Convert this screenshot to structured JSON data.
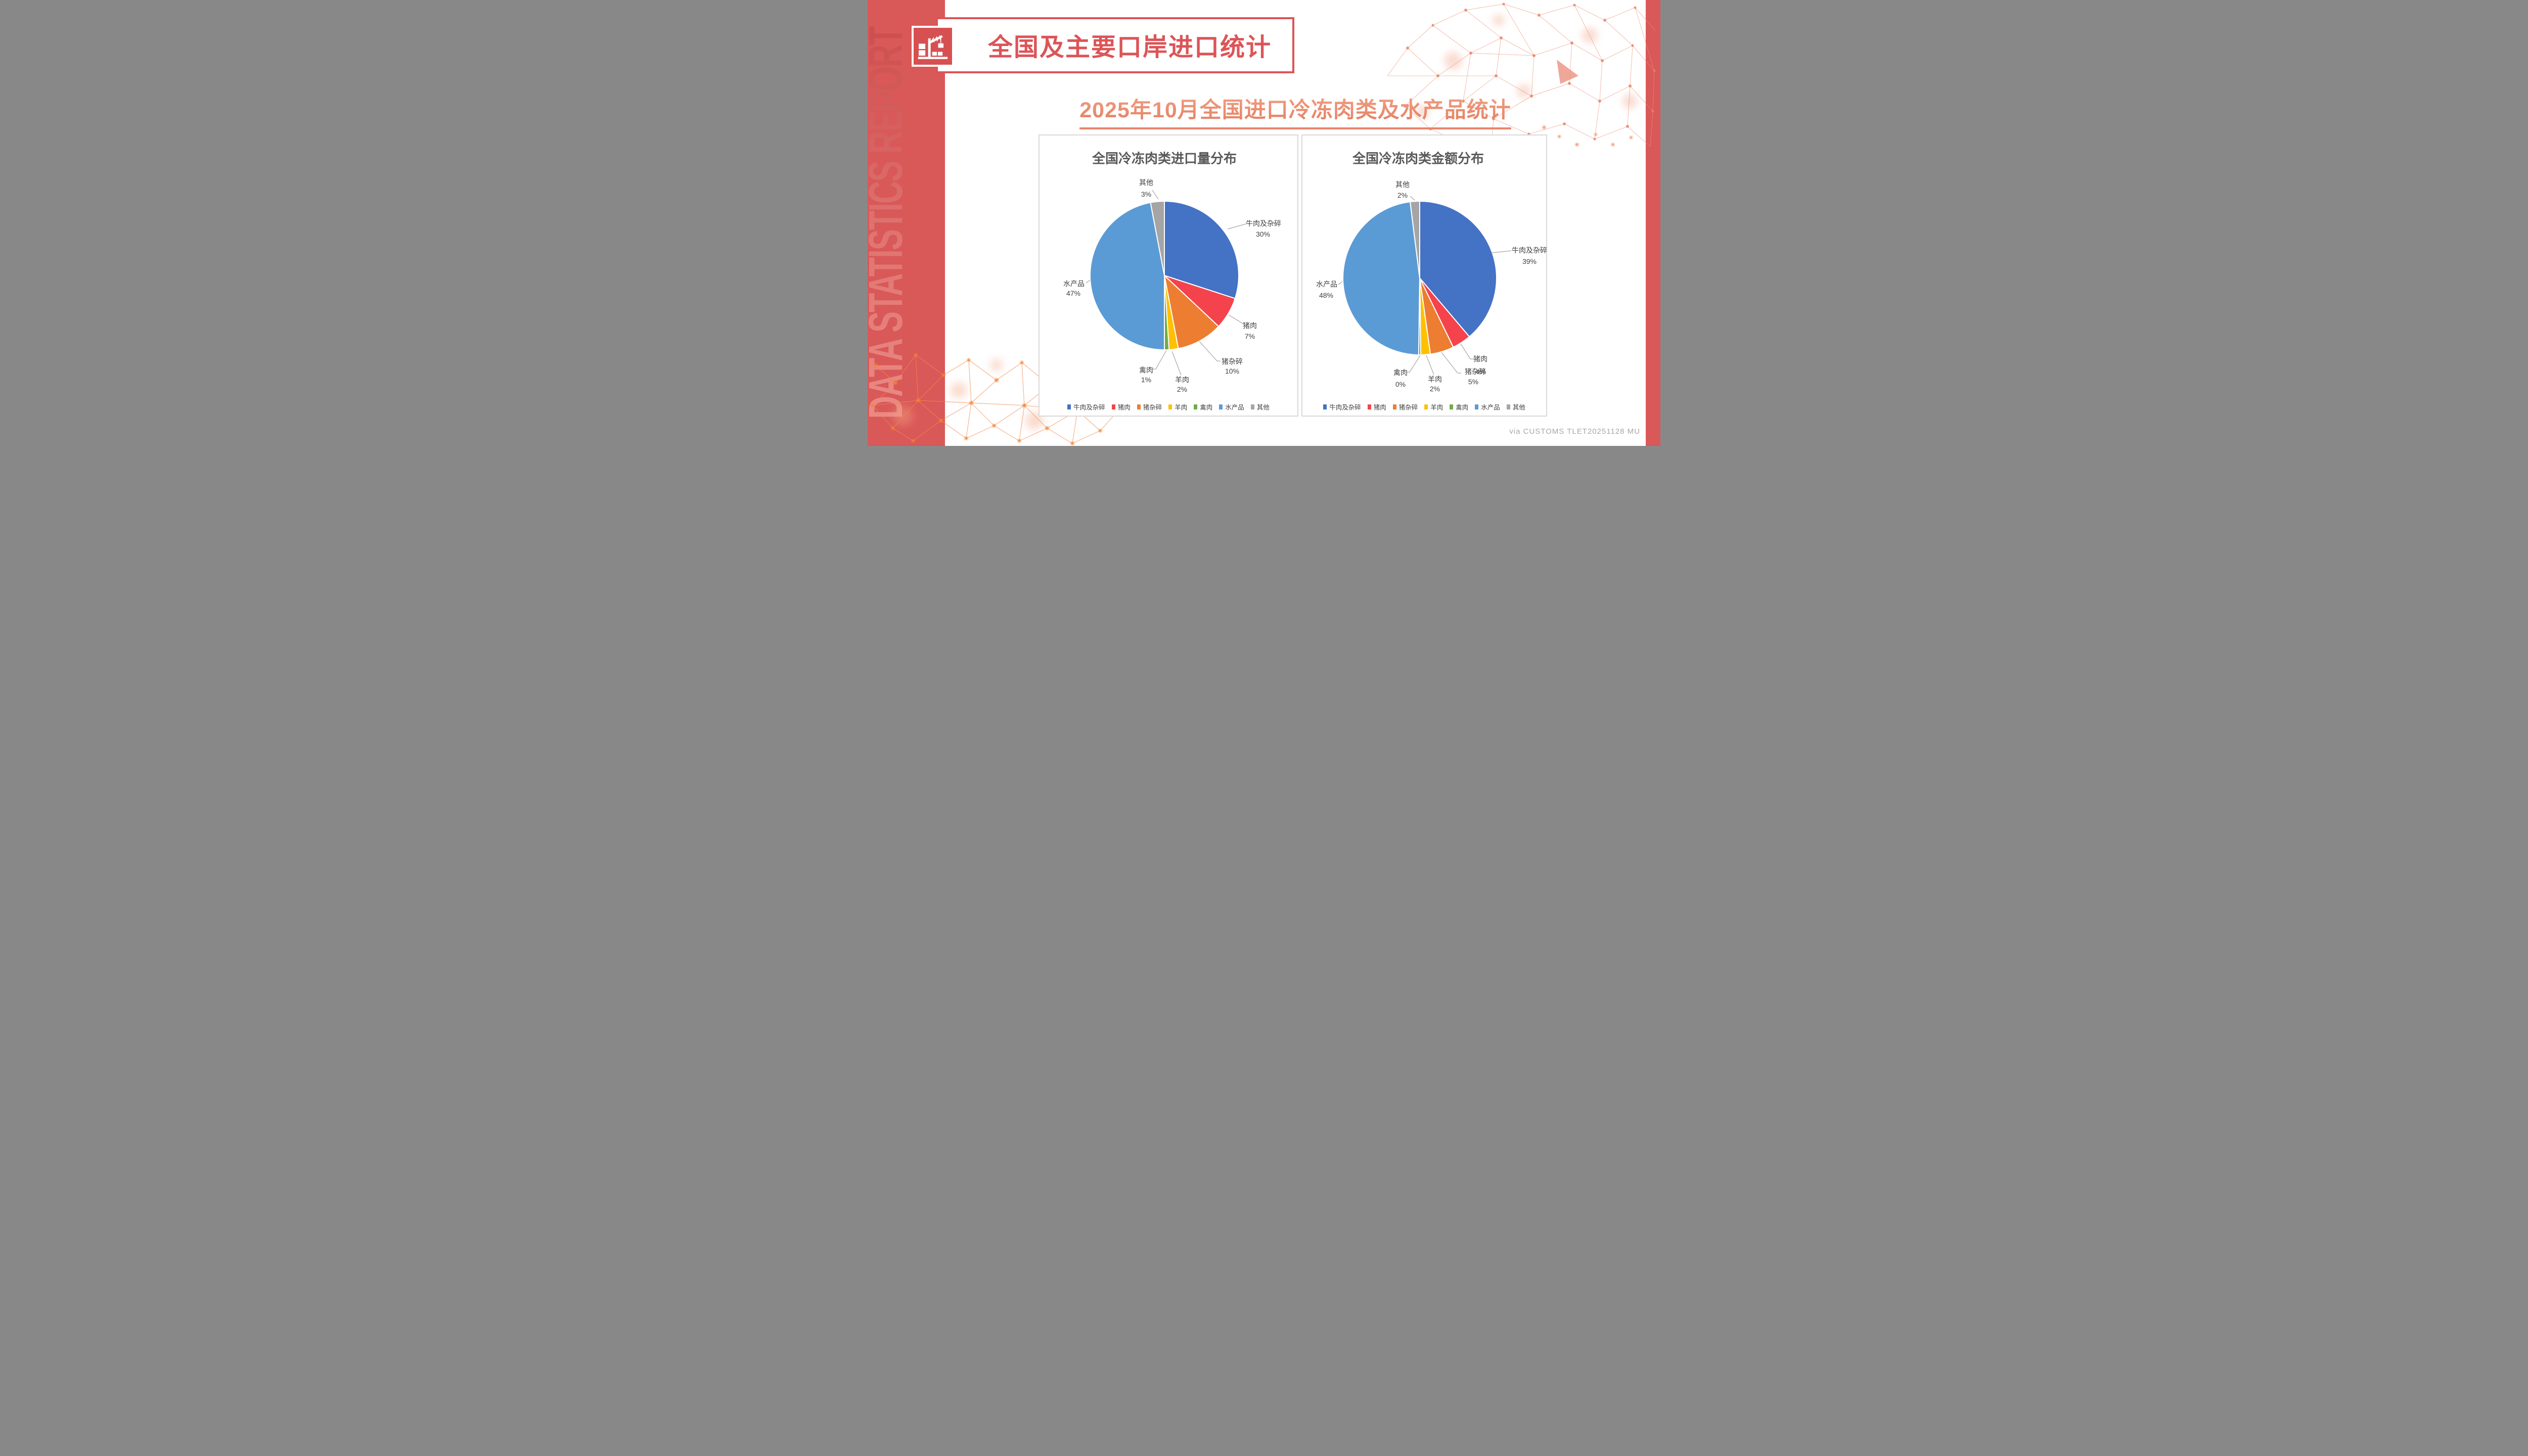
{
  "page": {
    "sidebar_text": "DATA STATISTICS REPORT",
    "header": {
      "title": "全国及主要口岸进口统计",
      "icon": "port-crane-icon"
    },
    "subtitle": "2025年10月全国进口冷冻肉类及水产品统计",
    "attribution": "via CUSTOMS TLET20251128 MU"
  },
  "colors": {
    "sidebar_red": "#D95858",
    "sidebar_text_gradient": [
      "#EC8D88",
      "#C94A4A"
    ],
    "accent_red": "#DC5457",
    "icon_box_red": "#D65052",
    "subtitle_salmon": "#E8846B",
    "chart_title_gray": "#595959",
    "label_gray": "#404040",
    "leader_line_gray": "#A6A6A6",
    "panel_border": "#D9D9D9",
    "attribution_gray": "#A9A6A6",
    "series": [
      "#4472C4",
      "#F4434C",
      "#ED7D31",
      "#FFC000",
      "#70AD47",
      "#5B9BD5",
      "#A5A5A5"
    ]
  },
  "chart_data": [
    {
      "type": "pie",
      "title": "全国冷冻肉类进口量分布",
      "categories": [
        "牛肉及杂碎",
        "猪肉",
        "猪杂碎",
        "羊肉",
        "禽肉",
        "水产品",
        "其他"
      ],
      "values": [
        30,
        7,
        10,
        2,
        1,
        47,
        3
      ],
      "unit": "%",
      "start_angle": "12-oclock",
      "direction": "clockwise",
      "data_labels": "category + percent, outside with leader lines",
      "legend_position": "bottom"
    },
    {
      "type": "pie",
      "title": "全国冷冻肉类金额分布",
      "categories": [
        "牛肉及杂碎",
        "猪肉",
        "猪杂碎",
        "羊肉",
        "禽肉",
        "水产品",
        "其他"
      ],
      "values": [
        39,
        4,
        5,
        2,
        0,
        48,
        2
      ],
      "unit": "%",
      "start_angle": "12-oclock",
      "direction": "clockwise",
      "data_labels": "category + percent, outside with leader lines (猪肉 4% label overlaps 猪杂碎 label)",
      "legend_position": "bottom"
    }
  ]
}
